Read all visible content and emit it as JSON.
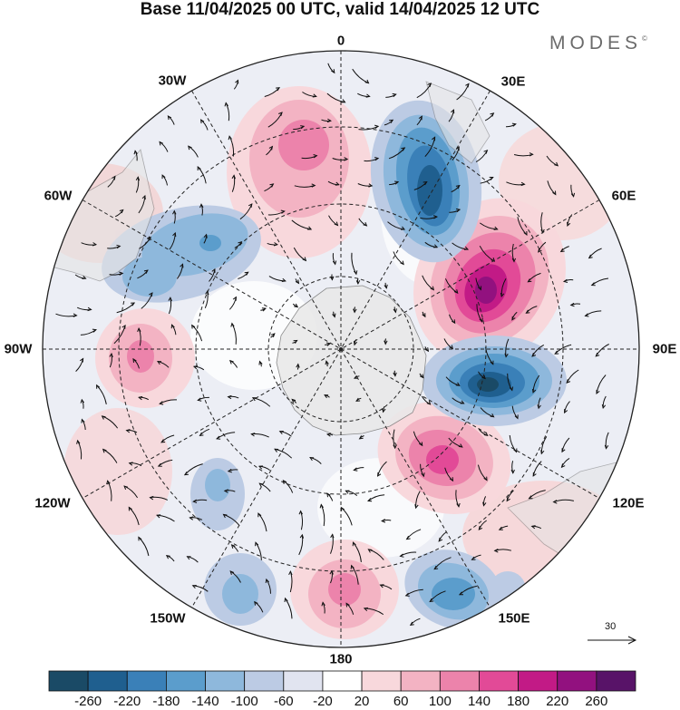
{
  "title": "Base 11/04/2025 00 UTC, valid 14/04/2025 12 UTC",
  "brand": {
    "name": "MODES",
    "mark": "©"
  },
  "map": {
    "projection": "south-polar-stereographic",
    "longitude_labels": {
      "top": "0",
      "bottom": "180",
      "left": "90W",
      "right": "90E",
      "upper_left_1": "30W",
      "upper_left_2": "60W",
      "upper_right_1": "30E",
      "upper_right_2": "60E",
      "lower_left_1": "120W",
      "lower_left_2": "150W",
      "lower_right_1": "120E",
      "lower_right_2": "150E"
    },
    "reference_vector": "30"
  },
  "colorbar": {
    "ticks": [
      "-260",
      "-220",
      "-180",
      "-140",
      "-100",
      "-60",
      "-20",
      "20",
      "60",
      "100",
      "140",
      "180",
      "220",
      "260"
    ],
    "colors": [
      "#1a4a66",
      "#1f5f8f",
      "#3a80b8",
      "#5b9dcc",
      "#8eb8dc",
      "#bccbe4",
      "#e1e4f0",
      "#ffffff",
      "#f8d8dc",
      "#f3b3c3",
      "#ec83ab",
      "#e24a97",
      "#c21a86",
      "#92117f",
      "#581368"
    ]
  }
}
